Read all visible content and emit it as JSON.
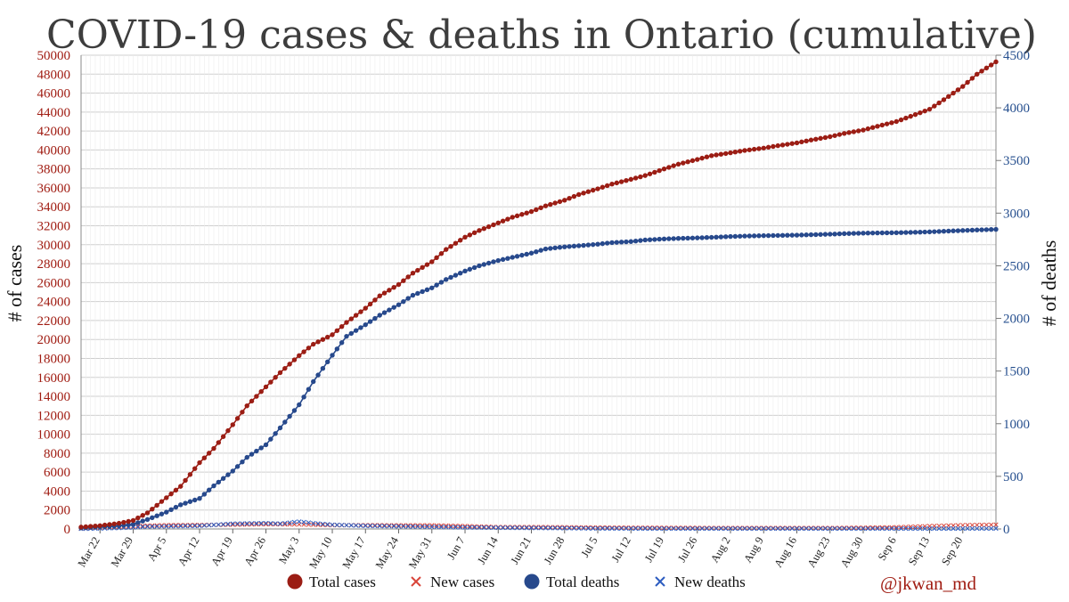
{
  "chart_data": {
    "type": "line",
    "title": "COVID-19 cases & deaths in Ontario (cumulative)",
    "ylabel": "# of cases",
    "ylabel_right": "# of deaths",
    "ylim": [
      0,
      50000
    ],
    "ylim_right": [
      0,
      4500
    ],
    "y_ticks": [
      0,
      2000,
      4000,
      6000,
      8000,
      10000,
      12000,
      14000,
      16000,
      18000,
      20000,
      22000,
      24000,
      26000,
      28000,
      30000,
      32000,
      34000,
      36000,
      38000,
      40000,
      42000,
      44000,
      46000,
      48000,
      50000
    ],
    "y_ticks_right": [
      0,
      500,
      1000,
      1500,
      2000,
      2500,
      3000,
      3500,
      4000,
      4500
    ],
    "x_day_range": [
      0,
      193
    ],
    "x_ticks": [
      {
        "day": 4,
        "label": "Mar 22"
      },
      {
        "day": 11,
        "label": "Mar 29"
      },
      {
        "day": 18,
        "label": "Apr 5"
      },
      {
        "day": 25,
        "label": "Apr 12"
      },
      {
        "day": 32,
        "label": "Apr 19"
      },
      {
        "day": 39,
        "label": "Apr 26"
      },
      {
        "day": 46,
        "label": "May 3"
      },
      {
        "day": 53,
        "label": "May 10"
      },
      {
        "day": 60,
        "label": "May 17"
      },
      {
        "day": 67,
        "label": "May 24"
      },
      {
        "day": 74,
        "label": "May 31"
      },
      {
        "day": 81,
        "label": "Jun 7"
      },
      {
        "day": 88,
        "label": "Jun 14"
      },
      {
        "day": 95,
        "label": "Jun 21"
      },
      {
        "day": 102,
        "label": "Jun 28"
      },
      {
        "day": 109,
        "label": "Jul 5"
      },
      {
        "day": 116,
        "label": "Jul 12"
      },
      {
        "day": 123,
        "label": "Jul 19"
      },
      {
        "day": 130,
        "label": "Jul 26"
      },
      {
        "day": 137,
        "label": "Aug 2"
      },
      {
        "day": 144,
        "label": "Aug 9"
      },
      {
        "day": 151,
        "label": "Aug 16"
      },
      {
        "day": 158,
        "label": "Aug 23"
      },
      {
        "day": 165,
        "label": "Aug 30"
      },
      {
        "day": 172,
        "label": "Sep 6"
      },
      {
        "day": 179,
        "label": "Sep 13"
      },
      {
        "day": 186,
        "label": "Sep 20"
      }
    ],
    "series": [
      {
        "name": "Total cases",
        "axis": "left",
        "color": "#9b1d14",
        "marker": "circle",
        "anchors": [
          [
            0,
            200
          ],
          [
            4,
            350
          ],
          [
            8,
            600
          ],
          [
            11,
            900
          ],
          [
            14,
            1700
          ],
          [
            18,
            3300
          ],
          [
            21,
            4500
          ],
          [
            25,
            7000
          ],
          [
            28,
            8500
          ],
          [
            32,
            11000
          ],
          [
            35,
            13000
          ],
          [
            39,
            15000
          ],
          [
            42,
            16500
          ],
          [
            46,
            18300
          ],
          [
            49,
            19500
          ],
          [
            53,
            20500
          ],
          [
            56,
            21800
          ],
          [
            60,
            23300
          ],
          [
            63,
            24600
          ],
          [
            67,
            25800
          ],
          [
            70,
            27000
          ],
          [
            74,
            28200
          ],
          [
            77,
            29500
          ],
          [
            81,
            30800
          ],
          [
            84,
            31500
          ],
          [
            88,
            32300
          ],
          [
            91,
            32900
          ],
          [
            95,
            33500
          ],
          [
            98,
            34100
          ],
          [
            102,
            34700
          ],
          [
            105,
            35300
          ],
          [
            109,
            35900
          ],
          [
            112,
            36400
          ],
          [
            116,
            36900
          ],
          [
            119,
            37300
          ],
          [
            123,
            38000
          ],
          [
            126,
            38500
          ],
          [
            130,
            39000
          ],
          [
            133,
            39400
          ],
          [
            137,
            39700
          ],
          [
            140,
            39950
          ],
          [
            144,
            40200
          ],
          [
            147,
            40450
          ],
          [
            151,
            40750
          ],
          [
            154,
            41050
          ],
          [
            158,
            41400
          ],
          [
            161,
            41750
          ],
          [
            165,
            42100
          ],
          [
            168,
            42500
          ],
          [
            172,
            43000
          ],
          [
            175,
            43550
          ],
          [
            179,
            44300
          ],
          [
            182,
            45300
          ],
          [
            186,
            46700
          ],
          [
            189,
            48000
          ],
          [
            193,
            49300
          ]
        ]
      },
      {
        "name": "New cases",
        "axis": "left",
        "color": "#d9453a",
        "marker": "x",
        "anchors": [
          [
            0,
            60
          ],
          [
            4,
            150
          ],
          [
            8,
            250
          ],
          [
            11,
            280
          ],
          [
            14,
            350
          ],
          [
            18,
            400
          ],
          [
            25,
            420
          ],
          [
            32,
            450
          ],
          [
            39,
            500
          ],
          [
            46,
            480
          ],
          [
            53,
            400
          ],
          [
            60,
            400
          ],
          [
            67,
            380
          ],
          [
            74,
            380
          ],
          [
            81,
            300
          ],
          [
            88,
            200
          ],
          [
            95,
            200
          ],
          [
            102,
            180
          ],
          [
            109,
            150
          ],
          [
            116,
            130
          ],
          [
            123,
            120
          ],
          [
            130,
            110
          ],
          [
            137,
            100
          ],
          [
            144,
            100
          ],
          [
            151,
            100
          ],
          [
            158,
            100
          ],
          [
            165,
            130
          ],
          [
            172,
            180
          ],
          [
            179,
            300
          ],
          [
            186,
            400
          ],
          [
            193,
            450
          ]
        ]
      },
      {
        "name": "Total deaths",
        "axis": "right",
        "color": "#27498c",
        "marker": "circle",
        "anchors": [
          [
            0,
            10
          ],
          [
            4,
            20
          ],
          [
            8,
            30
          ],
          [
            11,
            45
          ],
          [
            14,
            90
          ],
          [
            18,
            160
          ],
          [
            21,
            230
          ],
          [
            25,
            290
          ],
          [
            28,
            410
          ],
          [
            32,
            550
          ],
          [
            35,
            680
          ],
          [
            39,
            800
          ],
          [
            42,
            960
          ],
          [
            46,
            1180
          ],
          [
            49,
            1400
          ],
          [
            53,
            1650
          ],
          [
            56,
            1830
          ],
          [
            60,
            1940
          ],
          [
            63,
            2030
          ],
          [
            67,
            2130
          ],
          [
            70,
            2220
          ],
          [
            74,
            2290
          ],
          [
            77,
            2370
          ],
          [
            81,
            2450
          ],
          [
            84,
            2500
          ],
          [
            88,
            2550
          ],
          [
            91,
            2580
          ],
          [
            95,
            2620
          ],
          [
            98,
            2660
          ],
          [
            102,
            2680
          ],
          [
            105,
            2690
          ],
          [
            109,
            2705
          ],
          [
            112,
            2720
          ],
          [
            116,
            2730
          ],
          [
            119,
            2745
          ],
          [
            123,
            2755
          ],
          [
            126,
            2760
          ],
          [
            130,
            2765
          ],
          [
            133,
            2770
          ],
          [
            137,
            2778
          ],
          [
            140,
            2782
          ],
          [
            144,
            2786
          ],
          [
            147,
            2788
          ],
          [
            151,
            2791
          ],
          [
            154,
            2795
          ],
          [
            158,
            2800
          ],
          [
            161,
            2805
          ],
          [
            165,
            2810
          ],
          [
            168,
            2812
          ],
          [
            172,
            2814
          ],
          [
            175,
            2817
          ],
          [
            179,
            2822
          ],
          [
            182,
            2828
          ],
          [
            186,
            2835
          ],
          [
            189,
            2840
          ],
          [
            193,
            2846
          ]
        ]
      },
      {
        "name": "New deaths",
        "axis": "right",
        "color": "#2c5cc0",
        "marker": "x",
        "anchors": [
          [
            0,
            2
          ],
          [
            4,
            5
          ],
          [
            8,
            10
          ],
          [
            11,
            15
          ],
          [
            14,
            22
          ],
          [
            18,
            25
          ],
          [
            25,
            30
          ],
          [
            32,
            50
          ],
          [
            39,
            55
          ],
          [
            42,
            50
          ],
          [
            46,
            70
          ],
          [
            49,
            55
          ],
          [
            53,
            40
          ],
          [
            60,
            30
          ],
          [
            67,
            25
          ],
          [
            74,
            20
          ],
          [
            81,
            15
          ],
          [
            88,
            12
          ],
          [
            95,
            10
          ],
          [
            102,
            8
          ],
          [
            109,
            5
          ],
          [
            116,
            4
          ],
          [
            123,
            3
          ],
          [
            130,
            3
          ],
          [
            137,
            3
          ],
          [
            144,
            3
          ],
          [
            151,
            3
          ],
          [
            158,
            3
          ],
          [
            165,
            3
          ],
          [
            172,
            3
          ],
          [
            179,
            3
          ],
          [
            186,
            4
          ],
          [
            193,
            4
          ]
        ]
      }
    ],
    "legend": [
      "Total cases",
      "New cases",
      "Total deaths",
      "New deaths"
    ],
    "legend_position": "bottom",
    "credit": "@jkwan_md"
  }
}
